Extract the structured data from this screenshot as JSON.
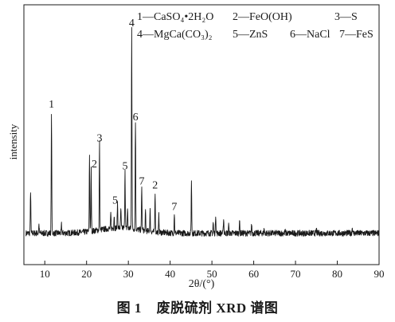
{
  "chart_data": {
    "type": "line",
    "xlabel": "2θ/(°)",
    "ylabel": "intensity",
    "xlim": [
      5,
      90
    ],
    "xticks": [
      10,
      20,
      30,
      40,
      50,
      60,
      70,
      80,
      90
    ],
    "grid": false,
    "legend": [
      "1—CaSO₄•2H₂O",
      "2—FeO(OH)",
      "3—S",
      "4—MgCa(CO₃)₂",
      "5—ZnS",
      "6—NaCl",
      "7—FeS"
    ],
    "baseline": 0.05,
    "peaks": [
      {
        "x": 6.6,
        "y": 0.25,
        "label": ""
      },
      {
        "x": 8.6,
        "y": 0.09,
        "label": ""
      },
      {
        "x": 11.6,
        "y": 0.62,
        "label": "1"
      },
      {
        "x": 14.0,
        "y": 0.09,
        "label": ""
      },
      {
        "x": 20.7,
        "y": 0.41,
        "label": ""
      },
      {
        "x": 21.1,
        "y": 0.34,
        "label": "2"
      },
      {
        "x": 23.1,
        "y": 0.46,
        "label": "3"
      },
      {
        "x": 25.8,
        "y": 0.12,
        "label": ""
      },
      {
        "x": 26.6,
        "y": 0.11,
        "label": ""
      },
      {
        "x": 27.4,
        "y": 0.17,
        "label": "5"
      },
      {
        "x": 28.2,
        "y": 0.14,
        "label": ""
      },
      {
        "x": 29.2,
        "y": 0.33,
        "label": "5"
      },
      {
        "x": 29.8,
        "y": 0.14,
        "label": ""
      },
      {
        "x": 30.8,
        "y": 1.0,
        "label": "4"
      },
      {
        "x": 31.7,
        "y": 0.56,
        "label": "6"
      },
      {
        "x": 33.2,
        "y": 0.26,
        "label": "7"
      },
      {
        "x": 34.1,
        "y": 0.14,
        "label": ""
      },
      {
        "x": 35.2,
        "y": 0.15,
        "label": ""
      },
      {
        "x": 36.4,
        "y": 0.24,
        "label": "2"
      },
      {
        "x": 37.3,
        "y": 0.13,
        "label": ""
      },
      {
        "x": 41.0,
        "y": 0.14,
        "label": "7"
      },
      {
        "x": 45.1,
        "y": 0.29,
        "label": ""
      },
      {
        "x": 50.3,
        "y": 0.1,
        "label": ""
      },
      {
        "x": 50.9,
        "y": 0.14,
        "label": ""
      },
      {
        "x": 52.8,
        "y": 0.12,
        "label": ""
      },
      {
        "x": 54.0,
        "y": 0.09,
        "label": ""
      },
      {
        "x": 56.6,
        "y": 0.11,
        "label": ""
      },
      {
        "x": 59.5,
        "y": 0.09,
        "label": ""
      },
      {
        "x": 62.5,
        "y": 0.07,
        "label": ""
      },
      {
        "x": 67.5,
        "y": 0.06,
        "label": ""
      },
      {
        "x": 75.0,
        "y": 0.07,
        "label": ""
      },
      {
        "x": 83.6,
        "y": 0.08,
        "label": ""
      }
    ]
  },
  "caption": {
    "number": "图 1",
    "text": "废脱硫剂 XRD 谱图"
  }
}
